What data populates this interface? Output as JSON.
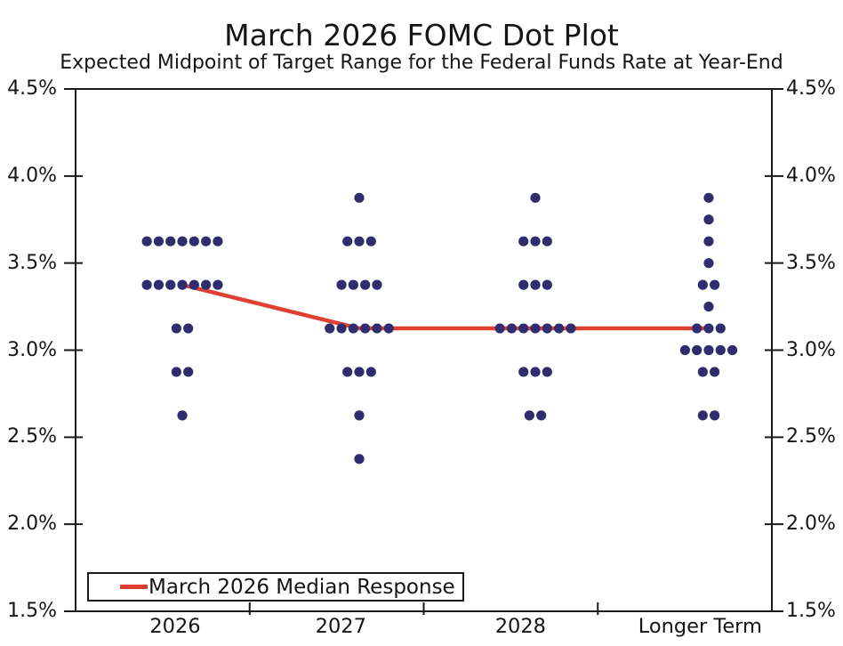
{
  "title": "March 2026 FOMC Dot Plot",
  "subtitle": "Expected Midpoint of Target Range for the Federal Funds Rate at Year-End",
  "legend": {
    "label": "March 2026 Median Response"
  },
  "colors": {
    "dot": "#312c6e",
    "median_line": "#df4031",
    "axis": "#1a1a1a",
    "background": "#ffffff"
  },
  "chart_data": {
    "type": "scatter",
    "title": "March 2026 FOMC Dot Plot",
    "subtitle": "Expected Midpoint of Target Range for the Federal Funds Rate at Year-End",
    "xlabel": "",
    "ylabel": "",
    "categories": [
      "2026",
      "2027",
      "2028",
      "Longer Term"
    ],
    "ylim": [
      1.5,
      4.5
    ],
    "y_tick_step": 0.5,
    "y_tick_values": [
      4.5,
      4.0,
      3.5,
      3.0,
      2.5,
      2.0,
      1.5
    ],
    "y_tick_labels": [
      "4.5%",
      "4.0%",
      "3.5%",
      "3.0%",
      "2.5%",
      "2.0%",
      "1.5%"
    ],
    "y_axis_sides": [
      "left",
      "right"
    ],
    "grid": false,
    "legend_position": "bottom-left",
    "dot_distributions": [
      {
        "category": "2026",
        "points": [
          {
            "rate": 3.625,
            "count": 7
          },
          {
            "rate": 3.375,
            "count": 7
          },
          {
            "rate": 3.125,
            "count": 2
          },
          {
            "rate": 2.875,
            "count": 2
          },
          {
            "rate": 2.625,
            "count": 1
          }
        ]
      },
      {
        "category": "2027",
        "points": [
          {
            "rate": 3.875,
            "count": 1
          },
          {
            "rate": 3.625,
            "count": 3
          },
          {
            "rate": 3.375,
            "count": 4
          },
          {
            "rate": 3.125,
            "count": 6
          },
          {
            "rate": 2.875,
            "count": 3
          },
          {
            "rate": 2.625,
            "count": 1
          },
          {
            "rate": 2.375,
            "count": 1
          }
        ]
      },
      {
        "category": "2028",
        "points": [
          {
            "rate": 3.875,
            "count": 1
          },
          {
            "rate": 3.625,
            "count": 3
          },
          {
            "rate": 3.375,
            "count": 3
          },
          {
            "rate": 3.125,
            "count": 7
          },
          {
            "rate": 2.875,
            "count": 3
          },
          {
            "rate": 2.625,
            "count": 2
          }
        ]
      },
      {
        "category": "Longer Term",
        "points": [
          {
            "rate": 3.875,
            "count": 1
          },
          {
            "rate": 3.75,
            "count": 1
          },
          {
            "rate": 3.625,
            "count": 1
          },
          {
            "rate": 3.5,
            "count": 1
          },
          {
            "rate": 3.375,
            "count": 2
          },
          {
            "rate": 3.25,
            "count": 1
          },
          {
            "rate": 3.125,
            "count": 3
          },
          {
            "rate": 3.0,
            "count": 5
          },
          {
            "rate": 2.875,
            "count": 2
          },
          {
            "rate": 2.625,
            "count": 2
          }
        ]
      }
    ],
    "median_series": {
      "name": "March 2026 Median Response",
      "values": [
        3.375,
        3.125,
        3.125,
        3.125
      ]
    }
  }
}
